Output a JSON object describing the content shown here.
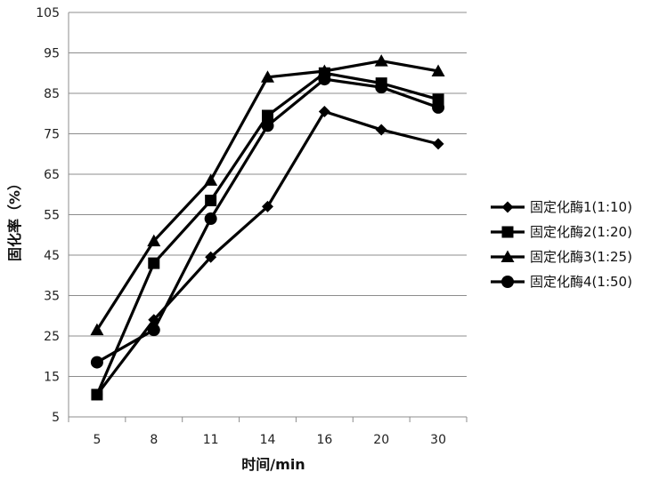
{
  "chart_data": {
    "type": "line",
    "categories": [
      "5",
      "8",
      "11",
      "14",
      "16",
      "20",
      "30"
    ],
    "xlabel": "时间/min",
    "ylabel": "固化率（%）",
    "ylim": [
      5,
      105
    ],
    "yticks": [
      5,
      15,
      25,
      35,
      45,
      55,
      65,
      75,
      85,
      95,
      105
    ],
    "grid": "horizontal",
    "legend_position": "right",
    "series": [
      {
        "name": "固定化酶1(1:10)",
        "marker": "diamond",
        "values": [
          10.5,
          29,
          44.5,
          57,
          80.5,
          76,
          72.5
        ]
      },
      {
        "name": "固定化酶2(1:20)",
        "marker": "square",
        "values": [
          10.5,
          43,
          58.5,
          79.5,
          90,
          87.5,
          83.5
        ]
      },
      {
        "name": "固定化酶3(1:25)",
        "marker": "triangle",
        "values": [
          26.5,
          48.5,
          63.5,
          89,
          90.5,
          93,
          90.5
        ]
      },
      {
        "name": "固定化酶4(1:50)",
        "marker": "circle",
        "values": [
          18.5,
          26.5,
          54,
          77,
          88.5,
          86.5,
          81.5
        ]
      }
    ],
    "colors": {
      "line": "#000000",
      "grid": "#8c8c8c",
      "axis": "#8c8c8c"
    }
  }
}
